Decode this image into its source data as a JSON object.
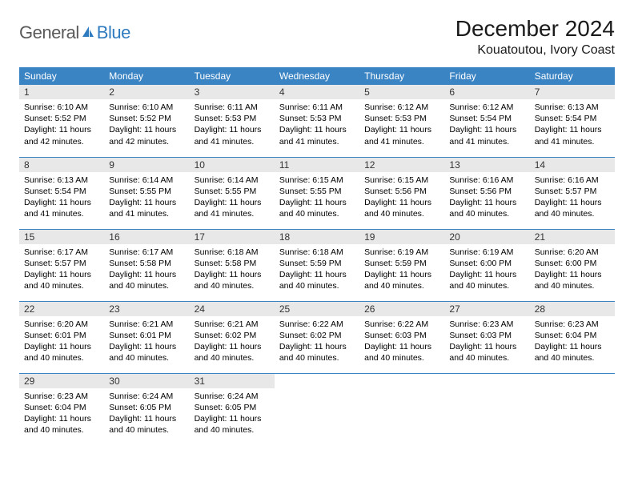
{
  "logo": {
    "text_general": "General",
    "text_blue": "Blue",
    "icon_color": "#2f7bbf"
  },
  "header": {
    "month_title": "December 2024",
    "location": "Kouatoutou, Ivory Coast"
  },
  "colors": {
    "header_bg": "#3b84c4",
    "header_text": "#ffffff",
    "daynum_bg": "#e8e8e8",
    "week_border": "#3b84c4",
    "text": "#000000"
  },
  "day_names": [
    "Sunday",
    "Monday",
    "Tuesday",
    "Wednesday",
    "Thursday",
    "Friday",
    "Saturday"
  ],
  "weeks": [
    [
      {
        "n": "1",
        "sr": "6:10 AM",
        "ss": "5:52 PM",
        "dl": "11 hours and 42 minutes."
      },
      {
        "n": "2",
        "sr": "6:10 AM",
        "ss": "5:52 PM",
        "dl": "11 hours and 42 minutes."
      },
      {
        "n": "3",
        "sr": "6:11 AM",
        "ss": "5:53 PM",
        "dl": "11 hours and 41 minutes."
      },
      {
        "n": "4",
        "sr": "6:11 AM",
        "ss": "5:53 PM",
        "dl": "11 hours and 41 minutes."
      },
      {
        "n": "5",
        "sr": "6:12 AM",
        "ss": "5:53 PM",
        "dl": "11 hours and 41 minutes."
      },
      {
        "n": "6",
        "sr": "6:12 AM",
        "ss": "5:54 PM",
        "dl": "11 hours and 41 minutes."
      },
      {
        "n": "7",
        "sr": "6:13 AM",
        "ss": "5:54 PM",
        "dl": "11 hours and 41 minutes."
      }
    ],
    [
      {
        "n": "8",
        "sr": "6:13 AM",
        "ss": "5:54 PM",
        "dl": "11 hours and 41 minutes."
      },
      {
        "n": "9",
        "sr": "6:14 AM",
        "ss": "5:55 PM",
        "dl": "11 hours and 41 minutes."
      },
      {
        "n": "10",
        "sr": "6:14 AM",
        "ss": "5:55 PM",
        "dl": "11 hours and 41 minutes."
      },
      {
        "n": "11",
        "sr": "6:15 AM",
        "ss": "5:55 PM",
        "dl": "11 hours and 40 minutes."
      },
      {
        "n": "12",
        "sr": "6:15 AM",
        "ss": "5:56 PM",
        "dl": "11 hours and 40 minutes."
      },
      {
        "n": "13",
        "sr": "6:16 AM",
        "ss": "5:56 PM",
        "dl": "11 hours and 40 minutes."
      },
      {
        "n": "14",
        "sr": "6:16 AM",
        "ss": "5:57 PM",
        "dl": "11 hours and 40 minutes."
      }
    ],
    [
      {
        "n": "15",
        "sr": "6:17 AM",
        "ss": "5:57 PM",
        "dl": "11 hours and 40 minutes."
      },
      {
        "n": "16",
        "sr": "6:17 AM",
        "ss": "5:58 PM",
        "dl": "11 hours and 40 minutes."
      },
      {
        "n": "17",
        "sr": "6:18 AM",
        "ss": "5:58 PM",
        "dl": "11 hours and 40 minutes."
      },
      {
        "n": "18",
        "sr": "6:18 AM",
        "ss": "5:59 PM",
        "dl": "11 hours and 40 minutes."
      },
      {
        "n": "19",
        "sr": "6:19 AM",
        "ss": "5:59 PM",
        "dl": "11 hours and 40 minutes."
      },
      {
        "n": "20",
        "sr": "6:19 AM",
        "ss": "6:00 PM",
        "dl": "11 hours and 40 minutes."
      },
      {
        "n": "21",
        "sr": "6:20 AM",
        "ss": "6:00 PM",
        "dl": "11 hours and 40 minutes."
      }
    ],
    [
      {
        "n": "22",
        "sr": "6:20 AM",
        "ss": "6:01 PM",
        "dl": "11 hours and 40 minutes."
      },
      {
        "n": "23",
        "sr": "6:21 AM",
        "ss": "6:01 PM",
        "dl": "11 hours and 40 minutes."
      },
      {
        "n": "24",
        "sr": "6:21 AM",
        "ss": "6:02 PM",
        "dl": "11 hours and 40 minutes."
      },
      {
        "n": "25",
        "sr": "6:22 AM",
        "ss": "6:02 PM",
        "dl": "11 hours and 40 minutes."
      },
      {
        "n": "26",
        "sr": "6:22 AM",
        "ss": "6:03 PM",
        "dl": "11 hours and 40 minutes."
      },
      {
        "n": "27",
        "sr": "6:23 AM",
        "ss": "6:03 PM",
        "dl": "11 hours and 40 minutes."
      },
      {
        "n": "28",
        "sr": "6:23 AM",
        "ss": "6:04 PM",
        "dl": "11 hours and 40 minutes."
      }
    ],
    [
      {
        "n": "29",
        "sr": "6:23 AM",
        "ss": "6:04 PM",
        "dl": "11 hours and 40 minutes."
      },
      {
        "n": "30",
        "sr": "6:24 AM",
        "ss": "6:05 PM",
        "dl": "11 hours and 40 minutes."
      },
      {
        "n": "31",
        "sr": "6:24 AM",
        "ss": "6:05 PM",
        "dl": "11 hours and 40 minutes."
      },
      null,
      null,
      null,
      null
    ]
  ],
  "labels": {
    "sunrise": "Sunrise:",
    "sunset": "Sunset:",
    "daylight": "Daylight:"
  }
}
